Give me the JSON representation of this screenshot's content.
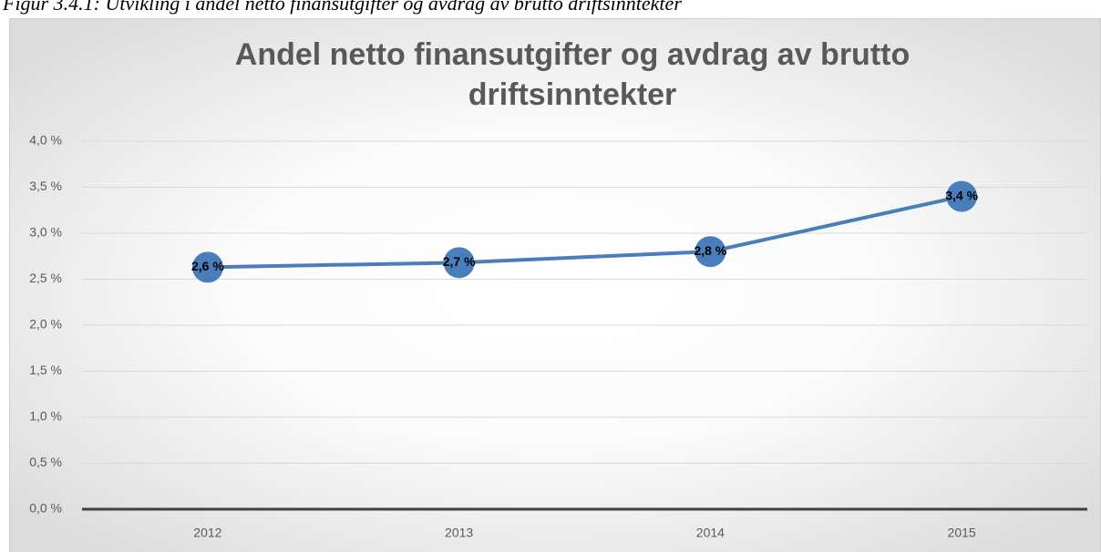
{
  "caption": "Figur 3.4.1: Utvikling i andel netto finansutgifter og avdrag av brutto driftsinntekter",
  "chart_data": {
    "type": "line",
    "title": [
      "Andel netto finansutgifter og avdrag av brutto",
      "driftsinntekter"
    ],
    "categories": [
      "2012",
      "2013",
      "2014",
      "2015"
    ],
    "values": [
      2.63,
      2.68,
      2.8,
      3.4
    ],
    "value_labels": [
      "2,6 %",
      "2,7 %",
      "2,8 %",
      "3,4 %"
    ],
    "color": "#4a7ebb",
    "ylim": [
      0,
      4
    ],
    "yticks": [
      {
        "value": 0,
        "label": "0,0 %"
      },
      {
        "value": 0.5,
        "label": "0,5 %"
      },
      {
        "value": 1,
        "label": "1,0 %"
      },
      {
        "value": 1.5,
        "label": "1,5 %"
      },
      {
        "value": 2,
        "label": "2,0 %"
      },
      {
        "value": 2.5,
        "label": "2,5 %"
      },
      {
        "value": 3,
        "label": "3,0 %"
      },
      {
        "value": 3.5,
        "label": "3,5 %"
      },
      {
        "value": 4,
        "label": "4,0 %"
      }
    ],
    "grid": true
  }
}
